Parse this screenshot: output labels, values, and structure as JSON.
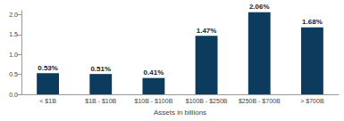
{
  "chart_data": {
    "type": "bar",
    "categories": [
      "< $1B",
      "$1B - $10B",
      "$10B - $100B",
      "$100B - $250B",
      "$250B - $700B",
      "> $700B"
    ],
    "values": [
      0.53,
      0.51,
      0.41,
      1.47,
      2.06,
      1.68
    ],
    "value_labels": [
      "0.53%",
      "0.51%",
      "0.41%",
      "1.47%",
      "2.06%",
      "1.68%"
    ],
    "data_labels": true,
    "color": "#0d3b5e",
    "x_label": "Assets in billions",
    "ylim": [
      0,
      2.1
    ],
    "yticks": [
      {
        "value": 0,
        "label": "0.0"
      },
      0.5,
      {
        "value": 1,
        "label": "1.0"
      },
      1.5,
      {
        "value": 2,
        "label": "2.0"
      }
    ],
    "grid": false
  }
}
